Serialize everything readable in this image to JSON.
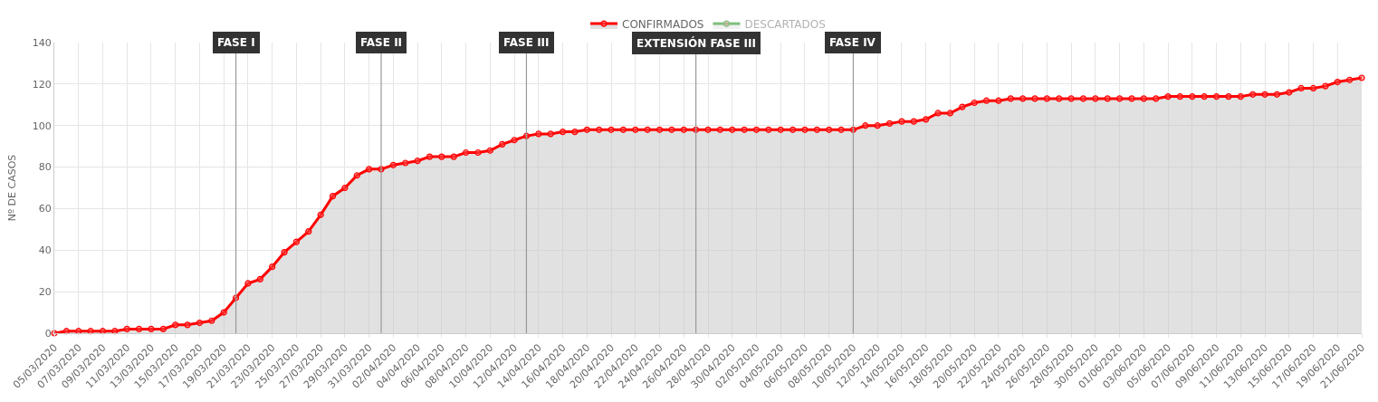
{
  "chart_data": {
    "type": "area",
    "ylabel": "Nº DE CASOS",
    "x": [
      "2020-03-05",
      "2020-03-06",
      "2020-03-07",
      "2020-03-08",
      "2020-03-09",
      "2020-03-10",
      "2020-03-11",
      "2020-03-12",
      "2020-03-13",
      "2020-03-14",
      "2020-03-15",
      "2020-03-16",
      "2020-03-17",
      "2020-03-18",
      "2020-03-19",
      "2020-03-20",
      "2020-03-21",
      "2020-03-22",
      "2020-03-23",
      "2020-03-24",
      "2020-03-25",
      "2020-03-26",
      "2020-03-27",
      "2020-03-28",
      "2020-03-29",
      "2020-03-30",
      "2020-03-31",
      "2020-04-01",
      "2020-04-02",
      "2020-04-03",
      "2020-04-04",
      "2020-04-05",
      "2020-04-06",
      "2020-04-07",
      "2020-04-08",
      "2020-04-09",
      "2020-04-10",
      "2020-04-11",
      "2020-04-12",
      "2020-04-13",
      "2020-04-14",
      "2020-04-15",
      "2020-04-16",
      "2020-04-17",
      "2020-04-18",
      "2020-04-19",
      "2020-04-20",
      "2020-04-21",
      "2020-04-22",
      "2020-04-23",
      "2020-04-24",
      "2020-04-25",
      "2020-04-26",
      "2020-04-27",
      "2020-04-28",
      "2020-04-29",
      "2020-04-30",
      "2020-05-01",
      "2020-05-02",
      "2020-05-03",
      "2020-05-04",
      "2020-05-05",
      "2020-05-06",
      "2020-05-07",
      "2020-05-08",
      "2020-05-09",
      "2020-05-10",
      "2020-05-11",
      "2020-05-12",
      "2020-05-13",
      "2020-05-14",
      "2020-05-15",
      "2020-05-16",
      "2020-05-17",
      "2020-05-18",
      "2020-05-19",
      "2020-05-20",
      "2020-05-21",
      "2020-05-22",
      "2020-05-23",
      "2020-05-24",
      "2020-05-25",
      "2020-05-26",
      "2020-05-27",
      "2020-05-28",
      "2020-05-29",
      "2020-05-30",
      "2020-05-31",
      "2020-06-01",
      "2020-06-02",
      "2020-06-03",
      "2020-06-04",
      "2020-06-05",
      "2020-06-06",
      "2020-06-07",
      "2020-06-08",
      "2020-06-09",
      "2020-06-10",
      "2020-06-11",
      "2020-06-12",
      "2020-06-13",
      "2020-06-14",
      "2020-06-15",
      "2020-06-16",
      "2020-06-17",
      "2020-06-18",
      "2020-06-19",
      "2020-06-20",
      "2020-06-21"
    ],
    "series": [
      {
        "name": "CONFIRMADOS",
        "color": "#ff0000",
        "values": [
          0,
          1,
          1,
          1,
          1,
          1,
          2,
          2,
          2,
          2,
          4,
          4,
          5,
          6,
          10,
          17,
          24,
          26,
          32,
          39,
          44,
          49,
          57,
          66,
          70,
          76,
          79,
          79,
          81,
          82,
          83,
          85,
          85,
          85,
          87,
          87,
          88,
          91,
          93,
          95,
          96,
          96,
          97,
          97,
          98,
          98,
          98,
          98,
          98,
          98,
          98,
          98,
          98,
          98,
          98,
          98,
          98,
          98,
          98,
          98,
          98,
          98,
          98,
          98,
          98,
          98,
          98,
          100,
          100,
          101,
          102,
          102,
          103,
          106,
          106,
          109,
          111,
          112,
          112,
          113,
          113,
          113,
          113,
          113,
          113,
          113,
          113,
          113,
          113,
          113,
          113,
          113,
          114,
          114,
          114,
          114,
          114,
          114,
          114,
          115,
          115,
          115,
          116,
          118,
          118,
          119,
          121,
          122,
          123
        ]
      },
      {
        "name": "DESCARTADOS",
        "color": "#008000",
        "values": [
          null,
          null,
          null,
          null,
          null,
          null,
          null,
          null,
          null,
          null,
          null,
          null,
          null,
          null,
          null,
          null,
          null,
          null,
          null,
          null,
          null,
          null,
          null,
          null,
          null,
          null,
          null,
          null,
          null,
          null,
          null,
          null,
          null,
          null,
          null,
          null,
          null,
          null,
          null,
          null,
          null,
          null,
          null,
          null,
          null,
          null,
          null,
          null,
          null,
          null,
          null,
          null,
          null,
          null,
          null,
          null,
          null,
          null,
          null,
          null,
          null,
          null,
          null,
          null,
          null,
          null,
          null,
          null,
          null,
          null,
          null,
          null,
          null,
          null,
          null,
          null,
          null,
          null,
          null,
          null,
          null,
          null,
          null,
          null,
          null,
          null,
          null,
          null,
          null,
          null,
          null,
          null,
          null,
          null,
          null,
          null,
          null,
          null,
          null,
          null,
          null,
          null,
          null,
          null,
          null,
          null,
          null,
          null,
          null
        ]
      }
    ],
    "xlim": [
      "2020-03-05",
      "2020-06-21"
    ],
    "xticks": [
      {
        "value": "2020-03-05",
        "label": "05/03/2020"
      },
      {
        "value": "2020-03-07",
        "label": "07/03/2020"
      },
      {
        "value": "2020-03-09",
        "label": "09/03/2020"
      },
      {
        "value": "2020-03-11",
        "label": "11/03/2020"
      },
      {
        "value": "2020-03-13",
        "label": "13/03/2020"
      },
      {
        "value": "2020-03-15",
        "label": "15/03/2020"
      },
      {
        "value": "2020-03-17",
        "label": "17/03/2020"
      },
      {
        "value": "2020-03-19",
        "label": "19/03/2020"
      },
      {
        "value": "2020-03-21",
        "label": "21/03/2020"
      },
      {
        "value": "2020-03-23",
        "label": "23/03/2020"
      },
      {
        "value": "2020-03-25",
        "label": "25/03/2020"
      },
      {
        "value": "2020-03-27",
        "label": "27/03/2020"
      },
      {
        "value": "2020-03-29",
        "label": "29/03/2020"
      },
      {
        "value": "2020-03-31",
        "label": "31/03/2020"
      },
      {
        "value": "2020-04-02",
        "label": "02/04/2020"
      },
      {
        "value": "2020-04-04",
        "label": "04/04/2020"
      },
      {
        "value": "2020-04-06",
        "label": "06/04/2020"
      },
      {
        "value": "2020-04-08",
        "label": "08/04/2020"
      },
      {
        "value": "2020-04-10",
        "label": "10/04/2020"
      },
      {
        "value": "2020-04-12",
        "label": "12/04/2020"
      },
      {
        "value": "2020-04-14",
        "label": "14/04/2020"
      },
      {
        "value": "2020-04-16",
        "label": "16/04/2020"
      },
      {
        "value": "2020-04-18",
        "label": "18/04/2020"
      },
      {
        "value": "2020-04-20",
        "label": "20/04/2020"
      },
      {
        "value": "2020-04-22",
        "label": "22/04/2020"
      },
      {
        "value": "2020-04-24",
        "label": "24/04/2020"
      },
      {
        "value": "2020-04-26",
        "label": "26/04/2020"
      },
      {
        "value": "2020-04-28",
        "label": "28/04/2020"
      },
      {
        "value": "2020-04-30",
        "label": "30/04/2020"
      },
      {
        "value": "2020-05-02",
        "label": "02/05/2020"
      },
      {
        "value": "2020-05-04",
        "label": "04/05/2020"
      },
      {
        "value": "2020-05-06",
        "label": "06/05/2020"
      },
      {
        "value": "2020-05-08",
        "label": "08/05/2020"
      },
      {
        "value": "2020-05-10",
        "label": "10/05/2020"
      },
      {
        "value": "2020-05-12",
        "label": "12/05/2020"
      },
      {
        "value": "2020-05-14",
        "label": "14/05/2020"
      },
      {
        "value": "2020-05-16",
        "label": "16/05/2020"
      },
      {
        "value": "2020-05-18",
        "label": "18/05/2020"
      },
      {
        "value": "2020-05-20",
        "label": "20/05/2020"
      },
      {
        "value": "2020-05-22",
        "label": "22/05/2020"
      },
      {
        "value": "2020-05-24",
        "label": "24/05/2020"
      },
      {
        "value": "2020-05-26",
        "label": "26/05/2020"
      },
      {
        "value": "2020-05-28",
        "label": "28/05/2020"
      },
      {
        "value": "2020-05-30",
        "label": "30/05/2020"
      },
      {
        "value": "2020-06-01",
        "label": "01/06/2020"
      },
      {
        "value": "2020-06-03",
        "label": "03/06/2020"
      },
      {
        "value": "2020-06-05",
        "label": "05/06/2020"
      },
      {
        "value": "2020-06-07",
        "label": "07/06/2020"
      },
      {
        "value": "2020-06-09",
        "label": "09/06/2020"
      },
      {
        "value": "2020-06-11",
        "label": "11/06/2020"
      },
      {
        "value": "2020-06-13",
        "label": "13/06/2020"
      },
      {
        "value": "2020-06-15",
        "label": "15/06/2020"
      },
      {
        "value": "2020-06-17",
        "label": "17/06/2020"
      },
      {
        "value": "2020-06-19",
        "label": "19/06/2020"
      },
      {
        "value": "2020-06-21",
        "label": "21/06/2020"
      }
    ],
    "ylim": [
      0,
      140
    ],
    "yticks": [
      0,
      20,
      40,
      60,
      80,
      100,
      120,
      140
    ],
    "ref_lines": [
      {
        "axis": "x",
        "value": "2020-03-20",
        "label": "FASE I",
        "color": "#999999"
      },
      {
        "axis": "x",
        "value": "2020-04-01",
        "label": "FASE II",
        "color": "#999999"
      },
      {
        "axis": "x",
        "value": "2020-04-13",
        "label": "FASE III",
        "color": "#999999"
      },
      {
        "axis": "x",
        "value": "2020-04-27",
        "label": "EXTENSIÓN FASE III",
        "color": "#999999"
      },
      {
        "axis": "x",
        "value": "2020-05-10",
        "label": "FASE IV",
        "color": "#999999"
      }
    ],
    "grid": true,
    "legend": "top",
    "marker": "circle",
    "line_style": "solid"
  }
}
